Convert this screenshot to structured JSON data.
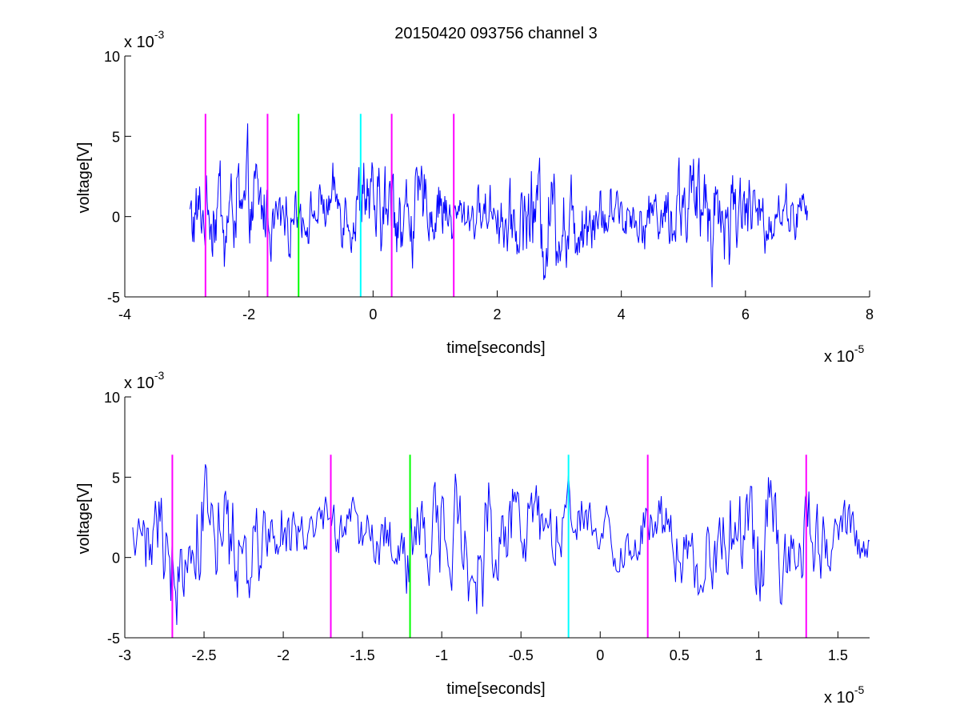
{
  "figure": {
    "title": "20150420 093756 channel 3"
  },
  "chart_data": [
    {
      "type": "line",
      "xlabel": "time[seconds]",
      "ylabel": "voltage[V]",
      "x_exponent": {
        "base": "x 10",
        "power": "-5"
      },
      "y_exponent": {
        "base": "x 10",
        "power": "-3"
      },
      "xlim": [
        -4,
        8
      ],
      "ylim": [
        -5,
        10
      ],
      "xticks": [
        -4,
        -2,
        0,
        2,
        4,
        6,
        8
      ],
      "xtick_labels": [
        "-4",
        "-2",
        "0",
        "2",
        "4",
        "6",
        "8"
      ],
      "yticks": [
        -5,
        0,
        5,
        10
      ],
      "ytick_labels": [
        "-5",
        "0",
        "5",
        "10"
      ],
      "grid": false,
      "series": [
        {
          "color": "#0000ff",
          "x_range": [
            -2.95,
            7.0
          ],
          "approx_range": [
            -4.4,
            5.8
          ]
        }
      ],
      "markers": [
        {
          "x": -2.7,
          "color": "#ff00ff"
        },
        {
          "x": -1.7,
          "color": "#ff00ff"
        },
        {
          "x": -1.2,
          "color": "#00ff00"
        },
        {
          "x": -0.2,
          "color": "#00ffff"
        },
        {
          "x": 0.3,
          "color": "#ff00ff"
        },
        {
          "x": 1.3,
          "color": "#ff00ff"
        }
      ],
      "marker_span": [
        -5,
        6.4
      ]
    },
    {
      "type": "line",
      "xlabel": "time[seconds]",
      "ylabel": "voltage[V]",
      "x_exponent": {
        "base": "x 10",
        "power": "-5"
      },
      "y_exponent": {
        "base": "x 10",
        "power": "-3"
      },
      "xlim": [
        -3.0,
        1.7
      ],
      "ylim": [
        -5,
        10
      ],
      "xticks": [
        -3,
        -2.5,
        -2,
        -1.5,
        -1,
        -0.5,
        0,
        0.5,
        1,
        1.5
      ],
      "xtick_labels": [
        "-3",
        "-2.5",
        "-2",
        "-1.5",
        "-1",
        "-0.5",
        "0",
        "0.5",
        "1",
        "1.5"
      ],
      "yticks": [
        -5,
        0,
        5,
        10
      ],
      "ytick_labels": [
        "-5",
        "0",
        "5",
        "10"
      ],
      "grid": false,
      "series": [
        {
          "color": "#0000ff",
          "x_range": [
            -2.95,
            1.7
          ],
          "approx_range": [
            -4.2,
            5.8
          ]
        }
      ],
      "markers": [
        {
          "x": -2.7,
          "color": "#ff00ff"
        },
        {
          "x": -1.7,
          "color": "#ff00ff"
        },
        {
          "x": -1.2,
          "color": "#00ff00"
        },
        {
          "x": -0.2,
          "color": "#00ffff"
        },
        {
          "x": 0.3,
          "color": "#ff00ff"
        },
        {
          "x": 1.3,
          "color": "#ff00ff"
        }
      ],
      "marker_span": [
        -5,
        6.4
      ]
    }
  ]
}
